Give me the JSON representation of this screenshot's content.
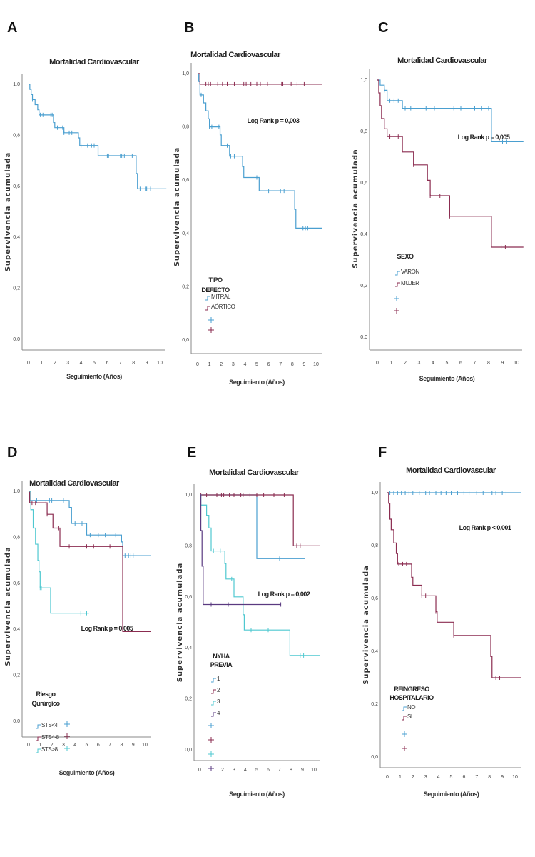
{
  "chart_data": [
    {
      "type": "line",
      "subtype": "kaplan-meier",
      "panel_letter": "A",
      "title": "Mortalidad Cardiovascular",
      "xlabel": "Seguimiento (Años)",
      "ylabel": "Supervivencia acumulada",
      "xlim": [
        0,
        10.5
      ],
      "ylim": [
        0,
        1
      ],
      "xticks": [
        "0",
        "1",
        "2",
        "3",
        "4",
        "5",
        "6",
        "7",
        "8",
        "9",
        "10"
      ],
      "yticks": [
        "0,0",
        "0,2",
        "0,4",
        "0,6",
        "0,8",
        "1,0"
      ],
      "log_rank": "",
      "legend_title": [],
      "series": [
        {
          "name": "",
          "color": "#4a9fd0",
          "end": 10.5,
          "steps": [
            [
              0.1,
              0.98
            ],
            [
              0.2,
              0.96
            ],
            [
              0.3,
              0.94
            ],
            [
              0.5,
              0.92
            ],
            [
              0.7,
              0.9
            ],
            [
              0.8,
              0.88
            ],
            [
              1.9,
              0.85
            ],
            [
              2.0,
              0.83
            ],
            [
              2.7,
              0.81
            ],
            [
              3.8,
              0.79
            ],
            [
              3.9,
              0.76
            ],
            [
              5.3,
              0.72
            ],
            [
              8.2,
              0.65
            ],
            [
              8.3,
              0.59
            ]
          ],
          "censored": [
            0.3,
            0.9,
            1.1,
            1.7,
            1.8,
            2.2,
            2.6,
            2.7,
            3.1,
            3.3,
            4.0,
            4.5,
            4.8,
            5.0,
            5.3,
            6.0,
            6.1,
            7.0,
            7.1,
            7.3,
            7.9,
            8.5,
            8.9,
            9.0,
            9.1,
            9.3
          ]
        }
      ]
    },
    {
      "type": "line",
      "subtype": "kaplan-meier",
      "panel_letter": "B",
      "title": "Mortalidad Cardiovascular",
      "xlabel": "Seguimiento (Años)",
      "ylabel": "Supervivencia acumulada",
      "xlim": [
        0,
        10.5
      ],
      "ylim": [
        0,
        1
      ],
      "xticks": [
        "0",
        "1",
        "2",
        "3",
        "4",
        "5",
        "6",
        "7",
        "8",
        "9",
        "10"
      ],
      "yticks": [
        "0,0",
        "0,2",
        "0,4",
        "0,6",
        "0,8",
        "1,0"
      ],
      "log_rank": "Log Rank p = 0,003",
      "legend_title": [
        "TIPO",
        "DEFECTO"
      ],
      "series": [
        {
          "name": "MITRAL",
          "color": "#4a9fd0",
          "end": 10.5,
          "steps": [
            [
              0.1,
              0.97
            ],
            [
              0.2,
              0.92
            ],
            [
              0.5,
              0.89
            ],
            [
              0.7,
              0.86
            ],
            [
              0.9,
              0.83
            ],
            [
              1.0,
              0.8
            ],
            [
              1.9,
              0.77
            ],
            [
              2.0,
              0.73
            ],
            [
              2.7,
              0.69
            ],
            [
              3.8,
              0.65
            ],
            [
              3.9,
              0.61
            ],
            [
              5.2,
              0.56
            ],
            [
              8.2,
              0.49
            ],
            [
              8.3,
              0.42
            ]
          ],
          "censored": [
            0.3,
            1.0,
            1.2,
            1.8,
            2.5,
            2.8,
            3.1,
            5.0,
            6.0,
            7.0,
            7.3,
            8.9,
            9.1,
            9.3
          ]
        },
        {
          "name": "AÓRTICO",
          "color": "#8b2c50",
          "end": 10.5,
          "steps": [
            [
              0.2,
              0.96
            ]
          ],
          "censored": [
            0.7,
            0.9,
            1.1,
            1.7,
            2.1,
            2.5,
            3.1,
            3.9,
            4.1,
            4.5,
            5.0,
            5.3,
            5.9,
            7.1,
            7.2,
            7.9,
            8.4,
            9.0
          ]
        }
      ]
    },
    {
      "type": "line",
      "subtype": "kaplan-meier",
      "panel_letter": "C",
      "title": "Mortalidad Cardiovascular",
      "xlabel": "Seguimiento (Años)",
      "ylabel": "Supervivencia acumulada",
      "xlim": [
        0,
        10.5
      ],
      "ylim": [
        0,
        1
      ],
      "xticks": [
        "0",
        "1",
        "2",
        "3",
        "4",
        "5",
        "6",
        "7",
        "8",
        "9",
        "10"
      ],
      "yticks": [
        "0,0",
        "0,2",
        "0,4",
        "0,6",
        "0,8",
        "1,0"
      ],
      "log_rank": "Log Rank p = 0,005",
      "legend_title": [
        "SEXO"
      ],
      "series": [
        {
          "name": "VARÓN",
          "color": "#4a9fd0",
          "end": 10.5,
          "steps": [
            [
              0.2,
              0.98
            ],
            [
              0.5,
              0.96
            ],
            [
              0.7,
              0.92
            ],
            [
              1.8,
              0.89
            ],
            [
              8.2,
              0.76
            ]
          ],
          "censored": [
            0.5,
            0.9,
            1.2,
            1.5,
            2.0,
            2.4,
            3.0,
            3.5,
            4.1,
            5.0,
            5.5,
            6.0,
            7.0,
            7.5,
            8.0,
            9.0,
            9.3
          ]
        },
        {
          "name": "MUJER",
          "color": "#8b2c50",
          "end": 10.5,
          "steps": [
            [
              0.1,
              0.95
            ],
            [
              0.2,
              0.9
            ],
            [
              0.3,
              0.85
            ],
            [
              0.5,
              0.81
            ],
            [
              0.7,
              0.78
            ],
            [
              1.8,
              0.72
            ],
            [
              2.6,
              0.67
            ],
            [
              3.6,
              0.61
            ],
            [
              3.8,
              0.55
            ],
            [
              5.2,
              0.47
            ],
            [
              8.2,
              0.35
            ]
          ],
          "censored": [
            0.9,
            1.5,
            2.6,
            3.8,
            4.5,
            5.2,
            8.9,
            9.2
          ]
        }
      ]
    },
    {
      "type": "line",
      "subtype": "kaplan-meier",
      "panel_letter": "D",
      "title": "Mortalidad Cardiovascular",
      "xlabel": "Seguimiento (Años)",
      "ylabel": "Supervivencia acumulada",
      "xlim": [
        0,
        10.5
      ],
      "ylim": [
        0,
        1
      ],
      "xticks": [
        "0",
        "1",
        "2",
        "3",
        "4",
        "5",
        "6",
        "7",
        "8",
        "9",
        "10"
      ],
      "yticks": [
        "0,0",
        "0,2",
        "0,4",
        "0,6",
        "0,8",
        "1,0"
      ],
      "log_rank": "Log Rank p = 0,005",
      "legend_title": [
        "Riesgo",
        "Qurúrgico"
      ],
      "series": [
        {
          "name": "STS<4",
          "color": "#4a9fd0",
          "end": 10.5,
          "steps": [
            [
              0.1,
              0.96
            ],
            [
              3.5,
              0.93
            ],
            [
              3.7,
              0.86
            ],
            [
              5.0,
              0.81
            ],
            [
              8.0,
              0.78
            ],
            [
              8.1,
              0.72
            ]
          ],
          "censored": [
            0.7,
            1.8,
            2.0,
            3.0,
            4.0,
            4.6,
            5.3,
            6.0,
            6.6,
            7.5,
            8.3,
            8.6,
            8.8,
            9.0
          ]
        },
        {
          "name": "STS4-8",
          "color": "#8b2c50",
          "end": 10.5,
          "steps": [
            [
              0.1,
              0.95
            ],
            [
              1.6,
              0.9
            ],
            [
              2.1,
              0.84
            ],
            [
              2.7,
              0.76
            ],
            [
              8.1,
              0.39
            ]
          ],
          "censored": [
            0.3,
            0.6,
            1.5,
            1.6,
            2.6,
            3.5,
            5.0,
            5.6,
            7.0
          ]
        },
        {
          "name": "STS>8",
          "color": "#4fc8d0",
          "end": 5.2,
          "steps": [
            [
              0.2,
              0.92
            ],
            [
              0.4,
              0.84
            ],
            [
              0.6,
              0.77
            ],
            [
              0.8,
              0.7
            ],
            [
              0.9,
              0.65
            ],
            [
              1.0,
              0.58
            ],
            [
              1.9,
              0.47
            ]
          ],
          "censored": [
            1.0,
            1.1,
            4.5,
            5.0
          ]
        }
      ]
    },
    {
      "type": "line",
      "subtype": "kaplan-meier",
      "panel_letter": "E",
      "title": "Mortalidad Cardiovascular",
      "xlabel": "Seguimiento (Años)",
      "ylabel": "Supervivencia acumulada",
      "xlim": [
        0,
        10.5
      ],
      "ylim": [
        0,
        1
      ],
      "xticks": [
        "0",
        "1",
        "2",
        "3",
        "4",
        "5",
        "6",
        "7",
        "8",
        "9",
        "10"
      ],
      "yticks": [
        "0,0",
        "0,2",
        "0,4",
        "0,6",
        "0,8",
        "1,0"
      ],
      "log_rank": "Log Rank p = 0,002",
      "legend_title": [
        "NYHA",
        "PREVIA"
      ],
      "series": [
        {
          "name": "1",
          "color": "#4a9fd0",
          "end": 9.2,
          "steps": [
            [
              5.0,
              0.75
            ]
          ],
          "censored": [
            7.0
          ]
        },
        {
          "name": "2",
          "color": "#8b2c50",
          "end": 10.5,
          "steps": [
            [
              8.2,
              0.8
            ]
          ],
          "censored": [
            0.1,
            0.6,
            1.5,
            1.9,
            2.1,
            2.6,
            3.0,
            3.6,
            3.8,
            4.4,
            5.0,
            5.6,
            6.5,
            7.4,
            8.5,
            8.8
          ]
        },
        {
          "name": "3",
          "color": "#4fc8d0",
          "end": 10.5,
          "steps": [
            [
              0.1,
              0.96
            ],
            [
              0.6,
              0.92
            ],
            [
              0.8,
              0.87
            ],
            [
              1.0,
              0.78
            ],
            [
              2.2,
              0.73
            ],
            [
              2.3,
              0.67
            ],
            [
              3.0,
              0.6
            ],
            [
              3.8,
              0.53
            ],
            [
              3.9,
              0.47
            ],
            [
              7.9,
              0.37
            ]
          ],
          "censored": [
            1.2,
            1.8,
            2.8,
            4.5,
            6.0,
            8.8,
            9.1
          ]
        },
        {
          "name": "4",
          "color": "#5a3a80",
          "end": 7.1,
          "steps": [
            [
              0.1,
              0.86
            ],
            [
              0.2,
              0.72
            ],
            [
              0.3,
              0.57
            ]
          ],
          "censored": [
            1.0,
            2.5,
            7.1
          ]
        }
      ]
    },
    {
      "type": "line",
      "subtype": "kaplan-meier",
      "panel_letter": "F",
      "title": "Mortalidad Cardiovascular",
      "xlabel": "Seguimiento (Años)",
      "ylabel": "Supervivencia acumulada",
      "xlim": [
        0,
        10.5
      ],
      "ylim": [
        0,
        1
      ],
      "xticks": [
        "0",
        "1",
        "2",
        "3",
        "4",
        "5",
        "6",
        "7",
        "8",
        "9",
        "10"
      ],
      "yticks": [
        "0,0",
        "0,2",
        "0,4",
        "0,6",
        "0,8",
        "1,0"
      ],
      "log_rank": "Log Rank p < 0,001",
      "legend_title": [
        "REINGRESO",
        "HOSPITALARIO"
      ],
      "series": [
        {
          "name": "NO",
          "color": "#4a9fd0",
          "end": 10.5,
          "steps": [],
          "censored": [
            0.2,
            0.5,
            0.8,
            1.1,
            1.4,
            1.7,
            2.0,
            2.5,
            3.0,
            3.3,
            3.8,
            4.2,
            4.6,
            5.0,
            5.5,
            6.0,
            6.4,
            7.0,
            7.5,
            8.2,
            8.5,
            9.0,
            9.3
          ]
        },
        {
          "name": "SI",
          "color": "#8b2c50",
          "end": 10.5,
          "steps": [
            [
              0.1,
              0.96
            ],
            [
              0.2,
              0.9
            ],
            [
              0.3,
              0.86
            ],
            [
              0.5,
              0.81
            ],
            [
              0.7,
              0.77
            ],
            [
              0.8,
              0.73
            ],
            [
              1.9,
              0.68
            ],
            [
              2.0,
              0.65
            ],
            [
              2.7,
              0.61
            ],
            [
              3.8,
              0.55
            ],
            [
              3.9,
              0.51
            ],
            [
              5.2,
              0.46
            ],
            [
              8.1,
              0.38
            ],
            [
              8.2,
              0.3
            ]
          ],
          "censored": [
            0.9,
            1.2,
            1.5,
            2.7,
            3.0,
            3.8,
            5.2,
            8.5,
            8.8
          ]
        }
      ]
    }
  ]
}
